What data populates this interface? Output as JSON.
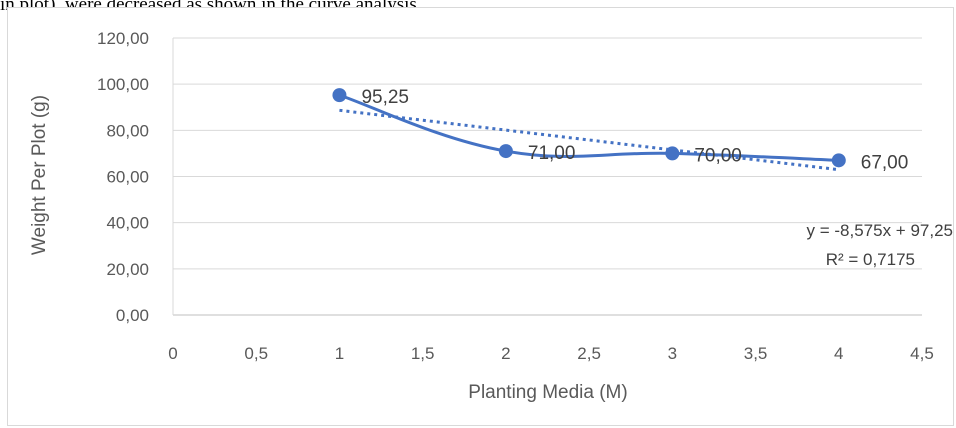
{
  "intro_text": "in plot), were decreased as shown in the curve analysis",
  "chart_data": {
    "type": "line",
    "title": "",
    "xlabel": "Planting Media (M)",
    "ylabel": "Weight Per Plot (g)",
    "xlim": [
      0,
      4.5
    ],
    "ylim": [
      0,
      120
    ],
    "x_ticks": [
      0,
      0.5,
      1,
      1.5,
      2,
      2.5,
      3,
      3.5,
      4,
      4.5
    ],
    "x_tick_labels": [
      "0",
      "0,5",
      "1",
      "1,5",
      "2",
      "2,5",
      "3",
      "3,5",
      "4",
      "4,5"
    ],
    "y_ticks": [
      0,
      20,
      40,
      60,
      80,
      100,
      120
    ],
    "y_tick_labels": [
      "0,00",
      "20,00",
      "40,00",
      "60,00",
      "80,00",
      "100,00",
      "120,00"
    ],
    "grid": true,
    "legend": "none",
    "series": [
      {
        "x": [
          1,
          2,
          3,
          4
        ],
        "y": [
          95.25,
          71.0,
          70.0,
          67.0
        ],
        "labels": [
          "95,25",
          "71,00",
          "70,00",
          "67,00"
        ],
        "color": "#4472c4"
      }
    ],
    "trendline": {
      "type": "linear",
      "slope": -8.575,
      "intercept": 97.25,
      "x_range": [
        1,
        4
      ],
      "equation": "y = -8,575x + 97,25",
      "r_squared": "R² = 0,7175",
      "color": "#4472c4"
    }
  }
}
